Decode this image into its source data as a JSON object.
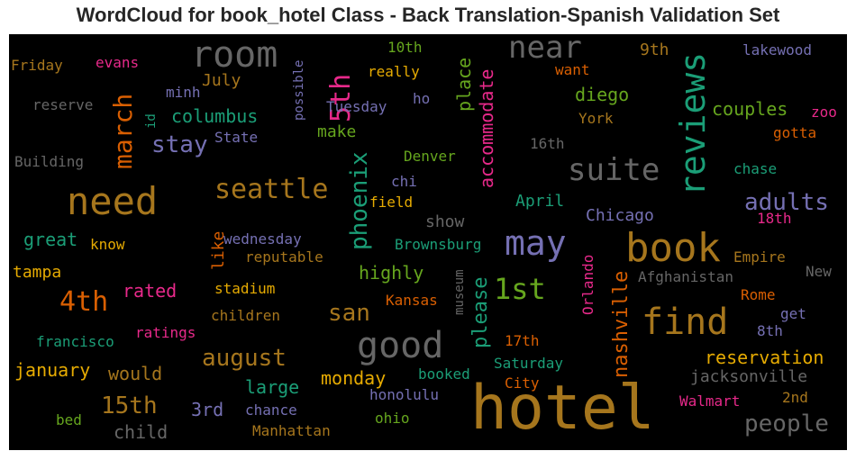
{
  "chart_data": {
    "type": "wordcloud",
    "title": "WordCloud for book_hotel Class - Back Translation-Spanish Validation Set",
    "background": "#000000",
    "palette": {
      "teal": "#1b9e77",
      "orange": "#d95f02",
      "purple": "#7570b3",
      "magenta": "#e7298a",
      "green": "#66a61e",
      "gold": "#e6ab02",
      "brown": "#a6761d",
      "gray": "#666666"
    },
    "words": [
      {
        "text": "hotel",
        "weight": 1.0,
        "color": "brown"
      },
      {
        "text": "book",
        "weight": 0.72,
        "color": "brown"
      },
      {
        "text": "find",
        "weight": 0.64,
        "color": "brown"
      },
      {
        "text": "good",
        "weight": 0.64,
        "color": "gray"
      },
      {
        "text": "need",
        "weight": 0.66,
        "color": "brown"
      },
      {
        "text": "room",
        "weight": 0.64,
        "color": "gray"
      },
      {
        "text": "may",
        "weight": 0.62,
        "color": "purple"
      },
      {
        "text": "reviews",
        "weight": 0.62,
        "color": "teal"
      },
      {
        "text": "suite",
        "weight": 0.54,
        "color": "gray"
      },
      {
        "text": "near",
        "weight": 0.5,
        "color": "gray"
      },
      {
        "text": "1st",
        "weight": 0.52,
        "color": "green"
      },
      {
        "text": "4th",
        "weight": 0.48,
        "color": "orange"
      },
      {
        "text": "5th",
        "weight": 0.46,
        "color": "magenta"
      },
      {
        "text": "march",
        "weight": 0.44,
        "color": "orange"
      },
      {
        "text": "seattle",
        "weight": 0.44,
        "color": "brown"
      },
      {
        "text": "phoenix",
        "weight": 0.4,
        "color": "teal"
      },
      {
        "text": "august",
        "weight": 0.4,
        "color": "brown"
      },
      {
        "text": "nashville",
        "weight": 0.36,
        "color": "orange"
      },
      {
        "text": "please",
        "weight": 0.36,
        "color": "teal"
      },
      {
        "text": "15th",
        "weight": 0.38,
        "color": "brown"
      },
      {
        "text": "stay",
        "weight": 0.36,
        "color": "purple"
      },
      {
        "text": "adults",
        "weight": 0.36,
        "color": "purple"
      },
      {
        "text": "people",
        "weight": 0.36,
        "color": "gray"
      },
      {
        "text": "san",
        "weight": 0.36,
        "color": "brown"
      },
      {
        "text": "accommodate",
        "weight": 0.3,
        "color": "magenta"
      },
      {
        "text": "place",
        "weight": 0.3,
        "color": "green"
      },
      {
        "text": "reservation",
        "weight": 0.3,
        "color": "gold"
      },
      {
        "text": "january",
        "weight": 0.28,
        "color": "gold"
      },
      {
        "text": "columbus",
        "weight": 0.28,
        "color": "teal"
      },
      {
        "text": "diego",
        "weight": 0.3,
        "color": "green"
      },
      {
        "text": "couples",
        "weight": 0.3,
        "color": "green"
      },
      {
        "text": "highly",
        "weight": 0.3,
        "color": "green"
      },
      {
        "text": "rated",
        "weight": 0.3,
        "color": "magenta"
      },
      {
        "text": "large",
        "weight": 0.3,
        "color": "teal"
      },
      {
        "text": "monday",
        "weight": 0.3,
        "color": "gold"
      },
      {
        "text": "would",
        "weight": 0.3,
        "color": "brown"
      },
      {
        "text": "child",
        "weight": 0.3,
        "color": "gray"
      },
      {
        "text": "3rd",
        "weight": 0.28,
        "color": "purple"
      },
      {
        "text": "great",
        "weight": 0.28,
        "color": "teal"
      },
      {
        "text": "tampa",
        "weight": 0.26,
        "color": "gold"
      },
      {
        "text": "like",
        "weight": 0.28,
        "color": "orange"
      },
      {
        "text": "make",
        "weight": 0.28,
        "color": "green"
      },
      {
        "text": "July",
        "weight": 0.28,
        "color": "brown"
      },
      {
        "text": "9th",
        "weight": 0.28,
        "color": "brown"
      },
      {
        "text": "April",
        "weight": 0.28,
        "color": "teal"
      },
      {
        "text": "Chicago",
        "weight": 0.28,
        "color": "purple"
      },
      {
        "text": "show",
        "weight": 0.28,
        "color": "gray"
      },
      {
        "text": "Orlando",
        "weight": 0.22,
        "color": "magenta"
      },
      {
        "text": "museum",
        "weight": 0.22,
        "color": "gray"
      },
      {
        "text": "York",
        "weight": 0.22,
        "color": "brown"
      },
      {
        "text": "id",
        "weight": 0.22,
        "color": "teal"
      },
      {
        "text": "possible",
        "weight": 0.22,
        "color": "purple"
      },
      {
        "text": "really",
        "weight": 0.22,
        "color": "gold"
      },
      {
        "text": "10th",
        "weight": 0.2,
        "color": "green"
      },
      {
        "text": "ho",
        "weight": 0.22,
        "color": "purple"
      },
      {
        "text": "want",
        "weight": 0.22,
        "color": "orange"
      },
      {
        "text": "lakewood",
        "weight": 0.22,
        "color": "purple"
      },
      {
        "text": "zoo",
        "weight": 0.22,
        "color": "magenta"
      },
      {
        "text": "gotta",
        "weight": 0.22,
        "color": "orange"
      },
      {
        "text": "chase",
        "weight": 0.22,
        "color": "teal"
      },
      {
        "text": "18th",
        "weight": 0.22,
        "color": "magenta"
      },
      {
        "text": "Empire",
        "weight": 0.22,
        "color": "brown"
      },
      {
        "text": "New",
        "weight": 0.22,
        "color": "gray"
      },
      {
        "text": "Afghanistan",
        "weight": 0.22,
        "color": "gray"
      },
      {
        "text": "Rome",
        "weight": 0.22,
        "color": "orange"
      },
      {
        "text": "get",
        "weight": 0.22,
        "color": "purple"
      },
      {
        "text": "8th",
        "weight": 0.22,
        "color": "purple"
      },
      {
        "text": "2nd",
        "weight": 0.22,
        "color": "brown"
      },
      {
        "text": "Walmart",
        "weight": 0.22,
        "color": "magenta"
      },
      {
        "text": "jacksonville",
        "weight": 0.24,
        "color": "gray"
      },
      {
        "text": "17th",
        "weight": 0.22,
        "color": "orange"
      },
      {
        "text": "Saturday",
        "weight": 0.22,
        "color": "teal"
      },
      {
        "text": "City",
        "weight": 0.22,
        "color": "orange"
      },
      {
        "text": "booked",
        "weight": 0.22,
        "color": "teal"
      },
      {
        "text": "honolulu",
        "weight": 0.22,
        "color": "purple"
      },
      {
        "text": "ohio",
        "weight": 0.22,
        "color": "green"
      },
      {
        "text": "chance",
        "weight": 0.22,
        "color": "purple"
      },
      {
        "text": "Manhattan",
        "weight": 0.22,
        "color": "brown"
      },
      {
        "text": "bed",
        "weight": 0.22,
        "color": "green"
      },
      {
        "text": "francisco",
        "weight": 0.22,
        "color": "teal"
      },
      {
        "text": "ratings",
        "weight": 0.22,
        "color": "magenta"
      },
      {
        "text": "children",
        "weight": 0.22,
        "color": "brown"
      },
      {
        "text": "stadium",
        "weight": 0.22,
        "color": "gold"
      },
      {
        "text": "reputable",
        "weight": 0.22,
        "color": "brown"
      },
      {
        "text": "wednesday",
        "weight": 0.22,
        "color": "purple"
      },
      {
        "text": "know",
        "weight": 0.22,
        "color": "gold"
      },
      {
        "text": "Brownsburg",
        "weight": 0.22,
        "color": "teal"
      },
      {
        "text": "Kansas",
        "weight": 0.22,
        "color": "orange"
      },
      {
        "text": "field",
        "weight": 0.22,
        "color": "gold"
      },
      {
        "text": "chi",
        "weight": 0.22,
        "color": "purple"
      },
      {
        "text": "Denver",
        "weight": 0.22,
        "color": "green"
      },
      {
        "text": "16th",
        "weight": 0.22,
        "color": "gray"
      },
      {
        "text": "Tuesday",
        "weight": 0.22,
        "color": "purple"
      },
      {
        "text": "State",
        "weight": 0.22,
        "color": "purple"
      },
      {
        "text": "Building",
        "weight": 0.22,
        "color": "gray"
      },
      {
        "text": "reserve",
        "weight": 0.22,
        "color": "gray"
      },
      {
        "text": "Friday",
        "weight": 0.22,
        "color": "brown"
      },
      {
        "text": "evans",
        "weight": 0.22,
        "color": "magenta"
      },
      {
        "text": "minh",
        "weight": 0.22,
        "color": "purple"
      }
    ]
  }
}
